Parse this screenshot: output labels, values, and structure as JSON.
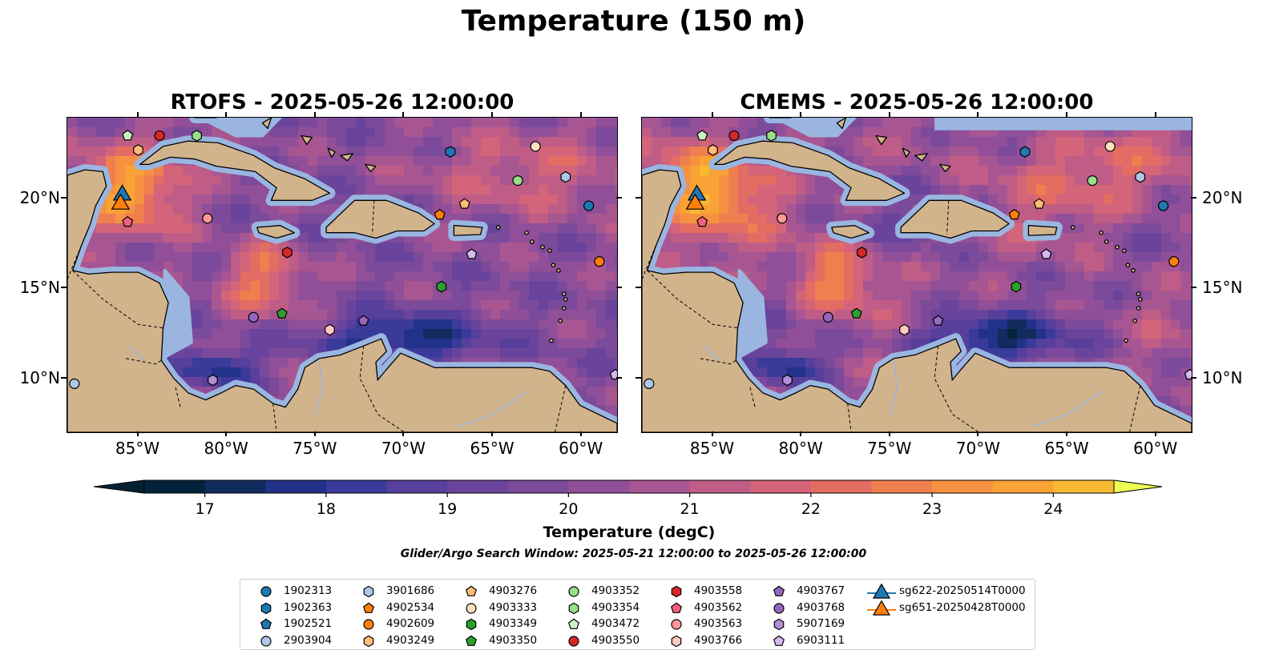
{
  "title": "Temperature (150 m)",
  "panels": [
    {
      "title": "RTOFS - 2025-05-26 12:00:00"
    },
    {
      "title": "CMEMS - 2025-05-26 12:00:00"
    }
  ],
  "map_extent": {
    "lon": [
      -89,
      -58
    ],
    "lat": [
      7,
      24.5
    ]
  },
  "lon_ticks": [
    "85°W",
    "80°W",
    "75°W",
    "70°W",
    "65°W",
    "60°W"
  ],
  "lat_ticks": [
    "20°N",
    "15°N",
    "10°N"
  ],
  "colors": {
    "land": "#d2b48c",
    "shelf": "#9ab6e0",
    "coast": "#000000"
  },
  "colorbar": {
    "label": "Temperature (degC)",
    "range": [
      16.5,
      24.5
    ],
    "step": 0.5,
    "ticks": [
      "17",
      "18",
      "19",
      "20",
      "21",
      "22",
      "23",
      "24"
    ],
    "colors": [
      "#04233a",
      "#122b5e",
      "#22328a",
      "#3a3a9a",
      "#573f9c",
      "#6a449c",
      "#7c4a9a",
      "#904f98",
      "#a85692",
      "#bf5d86",
      "#d3647a",
      "#e36d63",
      "#ef7f4f",
      "#f69141",
      "#f9a236",
      "#f8b933",
      "#f2d84c"
    ],
    "extend_min_color": "#032132",
    "extend_max_color": "#eeff54"
  },
  "search_window": "Glider/Argo Search Window: 2025-05-21 12:00:00 to 2025-05-26 12:00:00",
  "legend": [
    {
      "label": "1902313",
      "color": "#1f77b4",
      "marker": "circle"
    },
    {
      "label": "1902363",
      "color": "#1f77b4",
      "marker": "hexagon"
    },
    {
      "label": "1902521",
      "color": "#1f77b4",
      "marker": "pentagon"
    },
    {
      "label": "2903904",
      "color": "#aec7e8",
      "marker": "circle"
    },
    {
      "label": "3901686",
      "color": "#aec7e8",
      "marker": "hexagon"
    },
    {
      "label": "4902534",
      "color": "#ff7f0e",
      "marker": "pentagon"
    },
    {
      "label": "4902609",
      "color": "#ff7f0e",
      "marker": "circle"
    },
    {
      "label": "4903249",
      "color": "#ffbb78",
      "marker": "hexagon"
    },
    {
      "label": "4903276",
      "color": "#ffbb78",
      "marker": "pentagon"
    },
    {
      "label": "4903333",
      "color": "#ffdfc0",
      "marker": "circle"
    },
    {
      "label": "4903349",
      "color": "#2ca02c",
      "marker": "hexagon"
    },
    {
      "label": "4903350",
      "color": "#2ca02c",
      "marker": "pentagon"
    },
    {
      "label": "4903352",
      "color": "#98df8a",
      "marker": "circle"
    },
    {
      "label": "4903354",
      "color": "#98df8a",
      "marker": "hexagon"
    },
    {
      "label": "4903472",
      "color": "#c9f3c0",
      "marker": "pentagon"
    },
    {
      "label": "4903550",
      "color": "#d62728",
      "marker": "circle"
    },
    {
      "label": "4903558",
      "color": "#d62728",
      "marker": "hexagon"
    },
    {
      "label": "4903562",
      "color": "#f06080",
      "marker": "pentagon"
    },
    {
      "label": "4903563",
      "color": "#ff9896",
      "marker": "circle"
    },
    {
      "label": "4903766",
      "color": "#ffc8c0",
      "marker": "hexagon"
    },
    {
      "label": "4903767",
      "color": "#9467bd",
      "marker": "pentagon"
    },
    {
      "label": "4903768",
      "color": "#9467bd",
      "marker": "circle"
    },
    {
      "label": "5907169",
      "color": "#b08fd8",
      "marker": "hexagon"
    },
    {
      "label": "6903111",
      "color": "#d8b8f0",
      "marker": "pentagon"
    },
    {
      "label": "sg622-20250514T0000",
      "color": "#1f77b4",
      "marker": "triangle"
    },
    {
      "label": "sg651-20250428T0000",
      "color": "#ff7f0e",
      "marker": "triangle"
    }
  ],
  "floats": [
    {
      "id": "4903472",
      "lon": -85.6,
      "lat": 23.5
    },
    {
      "id": "4903249",
      "lon": -85.0,
      "lat": 22.7
    },
    {
      "id": "4903550",
      "lon": -83.8,
      "lat": 23.5
    },
    {
      "id": "4903354",
      "lon": -81.7,
      "lat": 23.5
    },
    {
      "id": "1902363",
      "lon": -67.4,
      "lat": 22.6
    },
    {
      "id": "4903333",
      "lon": -62.6,
      "lat": 22.9
    },
    {
      "id": "4903352",
      "lon": -63.6,
      "lat": 21.0
    },
    {
      "id": "3901686",
      "lon": -60.9,
      "lat": 21.2
    },
    {
      "id": "1902313",
      "lon": -59.6,
      "lat": 19.6
    },
    {
      "id": "4902534",
      "lon": -68.0,
      "lat": 19.1
    },
    {
      "id": "4903276",
      "lon": -66.6,
      "lat": 19.7
    },
    {
      "id": "4903563",
      "lon": -81.1,
      "lat": 18.9
    },
    {
      "id": "4903562",
      "lon": -85.6,
      "lat": 18.7
    },
    {
      "id": "4903558",
      "lon": -76.6,
      "lat": 17.0
    },
    {
      "id": "6903111",
      "lon": -66.2,
      "lat": 16.9
    },
    {
      "id": "4902609",
      "lon": -59.0,
      "lat": 16.5
    },
    {
      "id": "4903349",
      "lon": -67.9,
      "lat": 15.1
    },
    {
      "id": "4903350",
      "lon": -76.9,
      "lat": 13.6
    },
    {
      "id": "4903768",
      "lon": -78.5,
      "lat": 13.4
    },
    {
      "id": "4903766",
      "lon": -74.2,
      "lat": 12.7
    },
    {
      "id": "4903767",
      "lon": -72.3,
      "lat": 13.2
    },
    {
      "id": "5907169",
      "lon": -80.8,
      "lat": 9.9
    },
    {
      "id": "2903904",
      "lon": -88.6,
      "lat": 9.7
    },
    {
      "id": "6903111",
      "lon": -58.1,
      "lat": 10.2
    }
  ],
  "gliders": [
    {
      "id": "sg622-20250514T0000",
      "lon": -85.9,
      "lat": 20.3
    },
    {
      "id": "sg651-20250428T0000",
      "lon": -86.0,
      "lat": 19.8
    }
  ]
}
